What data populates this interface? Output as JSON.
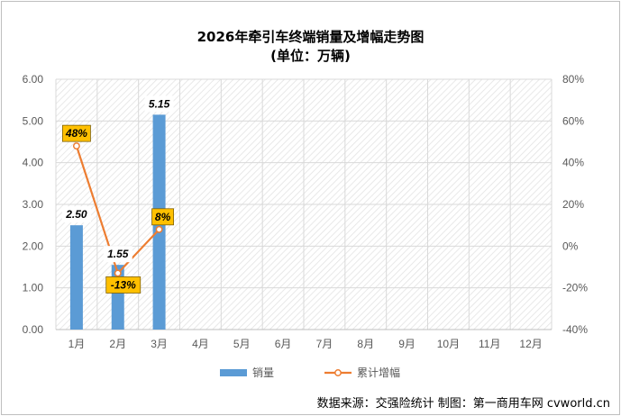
{
  "chart_data": {
    "type": "bar",
    "title": "2026年牵引车终端销量及增幅走势图",
    "subtitle": "(单位：万辆)",
    "categories": [
      "1月",
      "2月",
      "3月",
      "4月",
      "5月",
      "6月",
      "7月",
      "8月",
      "9月",
      "10月",
      "11月",
      "12月"
    ],
    "series": [
      {
        "name": "销量",
        "type": "bar",
        "axis": "left",
        "color": "#5b9bd5",
        "values": [
          2.5,
          1.55,
          5.15,
          null,
          null,
          null,
          null,
          null,
          null,
          null,
          null,
          null
        ],
        "labels": [
          "2.50",
          "1.55",
          "5.15"
        ]
      },
      {
        "name": "累计增幅",
        "type": "line",
        "axis": "right",
        "color": "#ed7d31",
        "values": [
          48,
          -13,
          8,
          null,
          null,
          null,
          null,
          null,
          null,
          null,
          null,
          null
        ],
        "labels": [
          "48%",
          "-13%",
          "8%"
        ]
      }
    ],
    "y_left": {
      "ylim": [
        0,
        6
      ],
      "ticks": [
        "0.00",
        "1.00",
        "2.00",
        "3.00",
        "4.00",
        "5.00",
        "6.00"
      ]
    },
    "y_right": {
      "ylim": [
        -40,
        80
      ],
      "ticks": [
        "-40%",
        "-20%",
        "0%",
        "20%",
        "40%",
        "60%",
        "80%"
      ]
    },
    "grid": true,
    "legend": "bottom"
  },
  "source_text": "数据来源：交强险统计  制图：第一商用车网 cvworld.cn"
}
